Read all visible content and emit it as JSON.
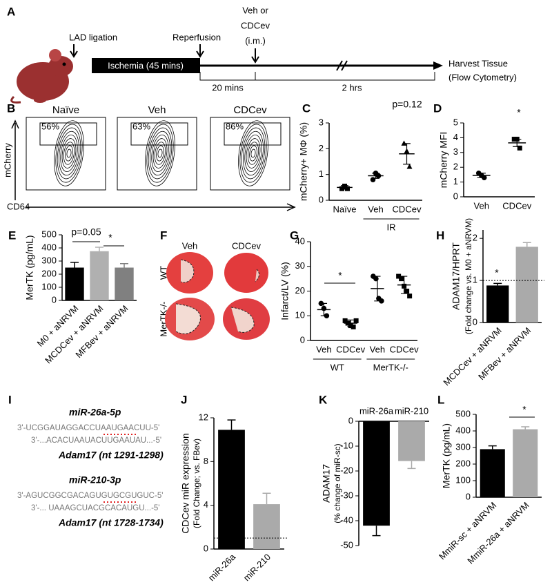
{
  "panel_letters": [
    "A",
    "B",
    "C",
    "D",
    "E",
    "F",
    "G",
    "H",
    "I",
    "J",
    "K",
    "L"
  ],
  "timeline": {
    "steps": [
      "LAD ligation",
      "Reperfusion"
    ],
    "treatment": [
      "Veh or",
      "CDCev",
      "(i.m.)"
    ],
    "ischemia": "Ischemia (45 mins)",
    "intervals": [
      "20 mins",
      "2 hrs"
    ],
    "harvest": [
      "Harvest Tissue",
      "(Flow Cytometry)"
    ]
  },
  "flow": {
    "samples": [
      "Naïve",
      "Veh",
      "CDCev"
    ],
    "gates": [
      56,
      63,
      86
    ],
    "gate_labels": [
      "56%",
      "63%",
      "86%"
    ],
    "ylabel": "mCherry",
    "xlabel": "CD64"
  },
  "histology": {
    "columns": [
      "Veh",
      "CDCev"
    ],
    "rows": [
      "WT",
      "MerTK-/-"
    ]
  },
  "sequences": [
    {
      "mirna": "miR-26a-5p",
      "mirna_seq": "3'-UCGGAUAGGACCUAAUGAACUU-5'",
      "target_seq": "3'-...ACACUAAUACUUGAAUAU...-5'",
      "target": "Adam17 (nt 1291-1298)"
    },
    {
      "mirna": "miR-210-3p",
      "mirna_seq": "3'-AGUCGGCGACAGUGUGCGUGUC-5'",
      "target_seq": "3'-... UAAAGCUACGCACAUGU...-5'",
      "target": "Adam17 (nt 1728-1734)"
    }
  ],
  "chart_data": [
    {
      "type": "dot",
      "ylabel": "mCherry+ MΦ (%)",
      "categories": [
        "Naïve",
        "Veh",
        "CDCev"
      ],
      "points": [
        [
          0.45,
          0.55,
          0.45
        ],
        [
          0.8,
          1.05,
          0.95
        ],
        [
          2.2,
          1.9,
          1.3
        ]
      ],
      "values": [
        0.5,
        0.95,
        1.8
      ],
      "errors": [
        0.07,
        0.1,
        0.4
      ],
      "markers": [
        "square",
        "circle",
        "triangle"
      ],
      "ylim": [
        0,
        3
      ],
      "yticks": [
        0,
        1,
        2,
        3
      ],
      "groups": [
        "IR"
      ],
      "annotations": [
        "p=0.12"
      ]
    },
    {
      "type": "dot",
      "ylabel": "mCherry MFI",
      "categories": [
        "Veh",
        "CDCev"
      ],
      "points": [
        [
          1.6,
          1.45,
          1.3
        ],
        [
          3.9,
          3.9,
          3.3
        ]
      ],
      "values": [
        1.45,
        3.65
      ],
      "errors": [
        0.15,
        0.25
      ],
      "markers": [
        "circle",
        "square"
      ],
      "ylim": [
        0,
        5
      ],
      "yticks": [
        0,
        1,
        2,
        3,
        4,
        5
      ],
      "annotations": [
        "*"
      ]
    },
    {
      "type": "bar",
      "ylabel": "MerTK (pg/mL)",
      "categories": [
        "M0 + aNRVM",
        "MCDCev + aNRVM",
        "MFBev + aNRVM"
      ],
      "values": [
        250,
        375,
        250
      ],
      "errors": [
        40,
        30,
        30
      ],
      "colors": [
        "#000000",
        "#b0b0b0",
        "#808080"
      ],
      "ylim": [
        0,
        500
      ],
      "yticks": [
        0,
        100,
        200,
        300,
        400,
        500
      ],
      "annotations": [
        "p=0.05",
        "*"
      ]
    },
    {
      "type": "dot",
      "ylabel": "Infarct/LV (%)",
      "categories": [
        "Veh",
        "CDCev",
        "Veh",
        "CDCev"
      ],
      "points": [
        [
          15,
          13,
          10
        ],
        [
          8,
          7,
          6,
          5.5,
          8
        ],
        [
          26,
          25,
          17,
          16
        ],
        [
          26,
          25,
          22,
          20,
          18
        ]
      ],
      "values": [
        12.5,
        7,
        21,
        22.5
      ],
      "errors": [
        2.5,
        1.3,
        5,
        3.5
      ],
      "markers": [
        "circle",
        "square",
        "circle",
        "square"
      ],
      "ylim": [
        0,
        40
      ],
      "yticks": [
        0,
        10,
        20,
        30,
        40
      ],
      "groups": [
        "WT",
        "MerTK-/-"
      ],
      "annotations": [
        "*"
      ]
    },
    {
      "type": "bar",
      "ylabel": "ADAM17/HPRT",
      "ylabel_sub": "(Fold change vs. M0 + aNRVM)",
      "categories": [
        "MCDCev + aNRVM",
        "MFBev + aNRVM"
      ],
      "values": [
        0.88,
        1.8
      ],
      "errors": [
        0.05,
        0.1
      ],
      "colors": [
        "#000000",
        "#aaaaaa"
      ],
      "ylim": [
        0,
        2.2
      ],
      "yticks": [
        0,
        1,
        2
      ],
      "ref_line": 1,
      "annotations": [
        "*"
      ]
    },
    {
      "type": "bar",
      "ylabel": "CDCev miR expression",
      "ylabel_sub": "(Fold Change; vs. FBev)",
      "categories": [
        "miR-26a",
        "miR-210"
      ],
      "values": [
        10.9,
        4.1
      ],
      "errors": [
        0.9,
        1.0
      ],
      "colors": [
        "#000000",
        "#aaaaaa"
      ],
      "ylim": [
        0,
        12
      ],
      "yticks": [
        0,
        4,
        8,
        12
      ],
      "ref_line": 1
    },
    {
      "type": "bar",
      "ylabel": "ADAM17",
      "ylabel_sub": "(% change of miR-sc)",
      "categories": [
        "miR-26a",
        "miR-210"
      ],
      "values": [
        -42,
        -16
      ],
      "errors": [
        4,
        3
      ],
      "colors": [
        "#000000",
        "#aaaaaa"
      ],
      "ylim": [
        -50,
        0
      ],
      "yticks": [
        0,
        -10,
        -20,
        -30,
        -40,
        -50
      ]
    },
    {
      "type": "bar",
      "ylabel": "MerTK (pg/mL)",
      "categories": [
        "MmiR-sc + aNRVM",
        "MmiR-26a + aNRVM"
      ],
      "values": [
        290,
        410
      ],
      "errors": [
        20,
        15
      ],
      "colors": [
        "#000000",
        "#aaaaaa"
      ],
      "ylim": [
        0,
        500
      ],
      "yticks": [
        0,
        100,
        200,
        300,
        400,
        500
      ],
      "annotations": [
        "*"
      ]
    }
  ]
}
